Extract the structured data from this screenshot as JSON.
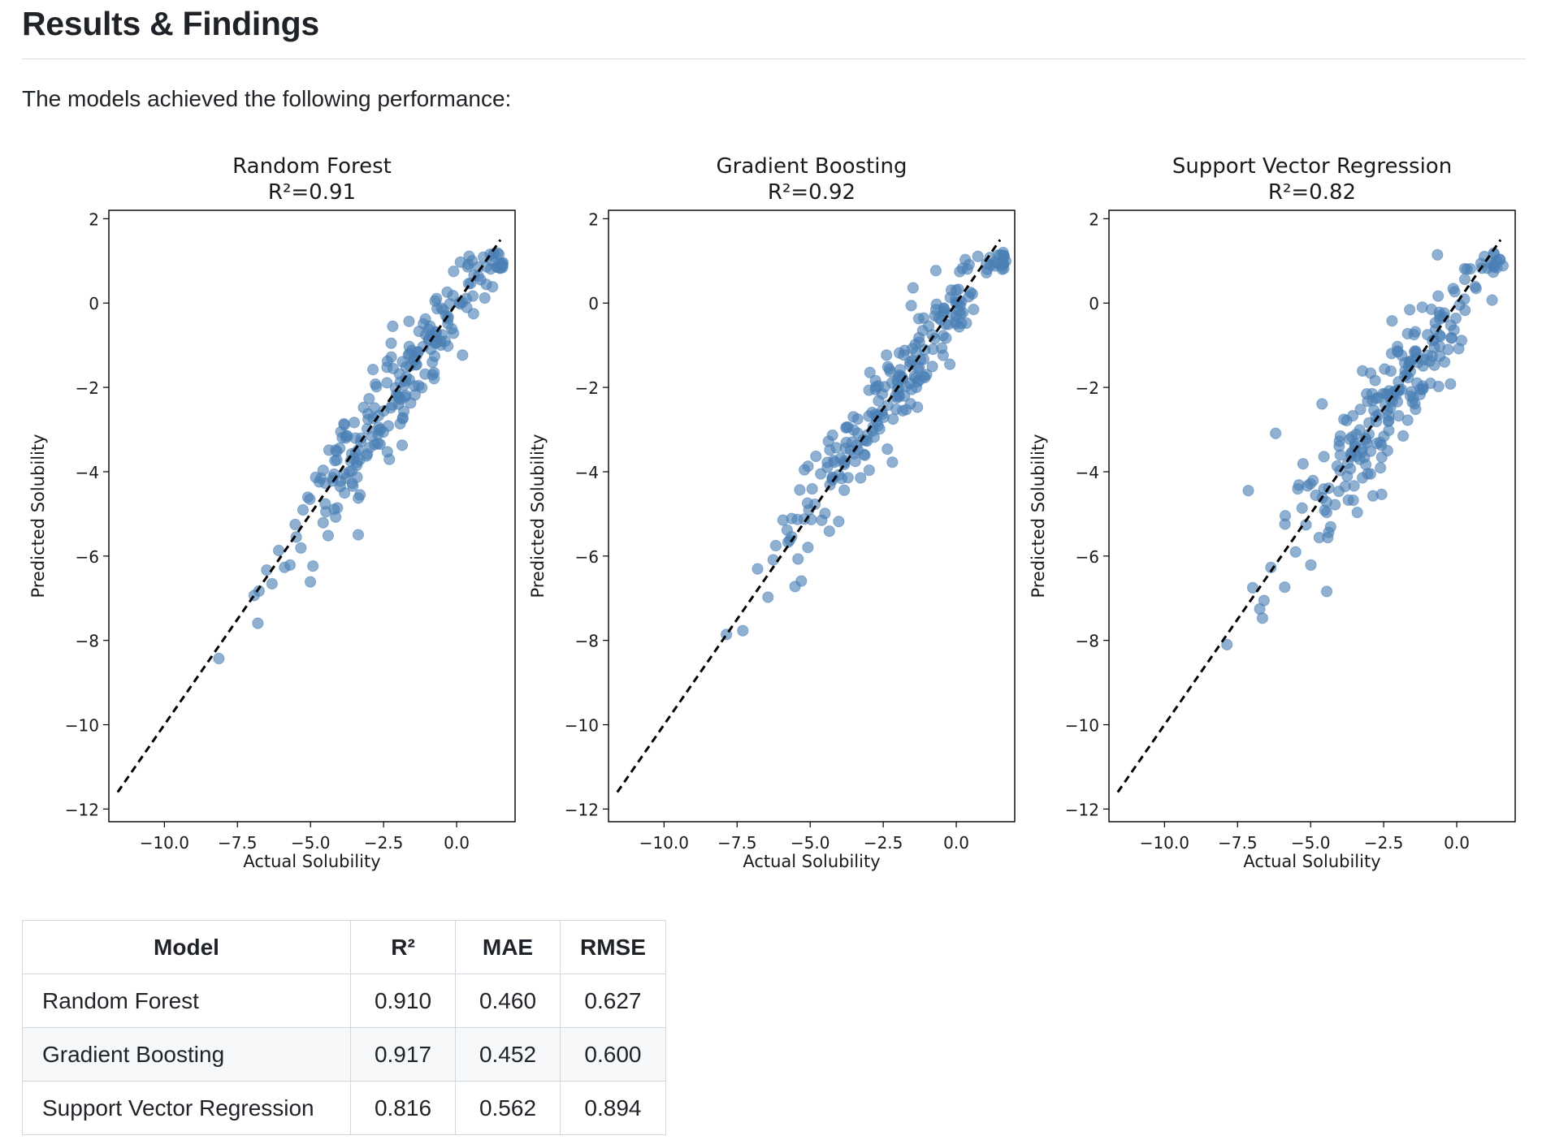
{
  "heading": "Results & Findings",
  "intro": "The models achieved the following performance:",
  "chart_data": [
    {
      "type": "scatter",
      "title": "Random Forest",
      "subtitle": "R²=0.91",
      "xlabel": "Actual Solubility",
      "ylabel": "Predicted Solubility",
      "xlim": [
        -11.9,
        2.0
      ],
      "ylim": [
        -12.3,
        2.2
      ],
      "xticks": [
        -10.0,
        -7.5,
        -5.0,
        -2.5,
        0.0
      ],
      "xtick_labels": [
        "−10.0",
        "−7.5",
        "−5.0",
        "−2.5",
        "0.0"
      ],
      "yticks": [
        2,
        0,
        -2,
        -4,
        -6,
        -8,
        -10,
        -12
      ],
      "ytick_labels": [
        "2",
        "0",
        "−2",
        "−4",
        "−6",
        "−8",
        "−10",
        "−12"
      ],
      "reference_line": {
        "style": "dashed",
        "color": "#000000",
        "x": [
          -11.6,
          1.5
        ],
        "y": [
          -11.6,
          1.5
        ]
      },
      "point_color": "#4a7fb5",
      "r2": 0.91,
      "rmse": 0.627,
      "seed": 11
    },
    {
      "type": "scatter",
      "title": "Gradient Boosting",
      "subtitle": "R²=0.92",
      "xlabel": "Actual Solubility",
      "ylabel": "Predicted Solubility",
      "xlim": [
        -11.9,
        2.0
      ],
      "ylim": [
        -12.3,
        2.2
      ],
      "xticks": [
        -10.0,
        -7.5,
        -5.0,
        -2.5,
        0.0
      ],
      "xtick_labels": [
        "−10.0",
        "−7.5",
        "−5.0",
        "−2.5",
        "0.0"
      ],
      "yticks": [
        2,
        0,
        -2,
        -4,
        -6,
        -8,
        -10,
        -12
      ],
      "ytick_labels": [
        "2",
        "0",
        "−2",
        "−4",
        "−6",
        "−8",
        "−10",
        "−12"
      ],
      "reference_line": {
        "style": "dashed",
        "color": "#000000",
        "x": [
          -11.6,
          1.5
        ],
        "y": [
          -11.6,
          1.5
        ]
      },
      "point_color": "#4a7fb5",
      "r2": 0.92,
      "rmse": 0.6,
      "seed": 23
    },
    {
      "type": "scatter",
      "title": "Support Vector Regression",
      "subtitle": "R²=0.82",
      "xlabel": "Actual Solubility",
      "ylabel": "Predicted Solubility",
      "xlim": [
        -11.9,
        2.0
      ],
      "ylim": [
        -12.3,
        2.2
      ],
      "xticks": [
        -10.0,
        -7.5,
        -5.0,
        -2.5,
        0.0
      ],
      "xtick_labels": [
        "−10.0",
        "−7.5",
        "−5.0",
        "−2.5",
        "0.0"
      ],
      "yticks": [
        2,
        0,
        -2,
        -4,
        -6,
        -8,
        -10,
        -12
      ],
      "ytick_labels": [
        "2",
        "0",
        "−2",
        "−4",
        "−6",
        "−8",
        "−10",
        "−12"
      ],
      "reference_line": {
        "style": "dashed",
        "color": "#000000",
        "x": [
          -11.6,
          1.5
        ],
        "y": [
          -11.6,
          1.5
        ]
      },
      "point_color": "#4a7fb5",
      "r2": 0.82,
      "rmse": 0.894,
      "seed": 37
    }
  ],
  "table": {
    "headers": [
      "Model",
      "R²",
      "MAE",
      "RMSE"
    ],
    "rows": [
      [
        "Random Forest",
        "0.910",
        "0.460",
        "0.627"
      ],
      [
        "Gradient Boosting",
        "0.917",
        "0.452",
        "0.600"
      ],
      [
        "Support Vector Regression",
        "0.816",
        "0.562",
        "0.894"
      ]
    ]
  }
}
